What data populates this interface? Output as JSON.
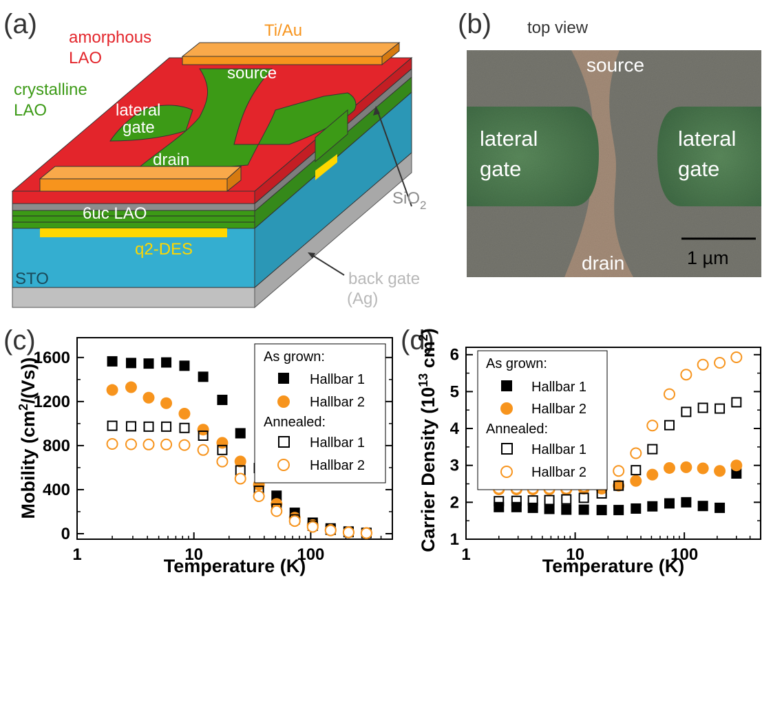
{
  "panel_labels": {
    "a": "(a)",
    "b": "(b)",
    "c": "(c)",
    "d": "(d)"
  },
  "panel_a": {
    "labels": {
      "amorphous": "amorphous",
      "lao_red": "LAO",
      "crystalline": "crystalline",
      "lao_green": "LAO",
      "tiau": "Ti/Au",
      "source": "source",
      "lateral": "lateral",
      "gate": "gate",
      "drain": "drain",
      "sixuc": "6uc LAO",
      "q2des": "q2-DES",
      "sto": "STO",
      "sio2": "SiO",
      "sio2_sub": "2",
      "back_gate": "back gate",
      "ag": "(Ag)"
    },
    "colors": {
      "amorphous": "#e3252b",
      "crystalline": "#3c9a16",
      "tiau": "#f7941d",
      "q2des": "#ffd700",
      "sto": "#34aed0",
      "sio2": "#8c8c8c",
      "ag": "#c0c0c0"
    }
  },
  "panel_b": {
    "title": "top view",
    "source": "source",
    "drain": "drain",
    "gate_left_1": "lateral",
    "gate_left_2": "gate",
    "gate_right_1": "lateral",
    "gate_right_2": "gate",
    "scale": "1 µm"
  },
  "chart_data": [
    {
      "id": "c",
      "type": "scatter",
      "x_scale": "log",
      "xlim": [
        1,
        500
      ],
      "ylim": [
        -50,
        1780
      ],
      "xlabel": "Temperature (K)",
      "ylabel_main": "Mobility (cm",
      "ylabel_sup": "2",
      "ylabel_end": "/(Vs))",
      "x_ticks": [
        1,
        10,
        100
      ],
      "x_tick_labels": [
        "1",
        "10",
        "100"
      ],
      "y_ticks": [
        0,
        400,
        800,
        1200,
        1600
      ],
      "y_tick_labels": [
        "0",
        "400",
        "800",
        "1200",
        "1600"
      ],
      "legend": {
        "header_1": "As grown:",
        "header_2": "Annealed:",
        "position": "top-right"
      },
      "series": [
        {
          "name": "Hallbar 1",
          "group": "As grown",
          "marker": "square",
          "filled": true,
          "color": "#000000",
          "x": [
            2,
            2.9,
            4.1,
            5.8,
            8.3,
            12,
            17.5,
            25,
            36,
            51,
            73,
            104,
            148,
            211,
            300
          ],
          "y": [
            1565,
            1550,
            1545,
            1555,
            1525,
            1425,
            1215,
            912,
            596,
            345,
            190,
            100,
            48,
            20,
            8
          ]
        },
        {
          "name": "Hallbar 2",
          "group": "As grown",
          "marker": "circle",
          "filled": true,
          "color": "#f7941d",
          "x": [
            2,
            2.9,
            4.1,
            5.8,
            8.3,
            12,
            17.5,
            25,
            36,
            51,
            73,
            104,
            148,
            211,
            300
          ],
          "y": [
            1305,
            1330,
            1235,
            1185,
            1090,
            945,
            825,
            656,
            445,
            270,
            145,
            78,
            35,
            14,
            6
          ]
        },
        {
          "name": "Hallbar 1",
          "group": "Annealed",
          "marker": "square",
          "filled": false,
          "color": "#000000",
          "x": [
            2,
            2.9,
            4.1,
            5.8,
            8.3,
            12,
            17.5,
            25,
            36,
            51,
            73,
            104,
            148,
            211,
            300
          ],
          "y": [
            980,
            975,
            972,
            972,
            960,
            890,
            760,
            575,
            390,
            228,
            130,
            72,
            35,
            14,
            6
          ]
        },
        {
          "name": "Hallbar 2",
          "group": "Annealed",
          "marker": "circle",
          "filled": false,
          "color": "#f7941d",
          "x": [
            2,
            2.9,
            4.1,
            5.8,
            8.3,
            12,
            17.5,
            25,
            36,
            51,
            73,
            104,
            148,
            211,
            300
          ],
          "y": [
            815,
            812,
            810,
            810,
            805,
            760,
            655,
            500,
            340,
            205,
            115,
            62,
            30,
            12,
            5
          ]
        }
      ]
    },
    {
      "id": "d",
      "type": "scatter",
      "x_scale": "log",
      "xlim": [
        1,
        500
      ],
      "ylim": [
        1,
        6.2
      ],
      "xlabel": "Temperature (K)",
      "ylabel_main": "Carrier Density (10",
      "ylabel_sup1": "13",
      "ylabel_mid": " cm",
      "ylabel_sup2": "2",
      "ylabel_end": ")",
      "x_ticks": [
        1,
        10,
        100
      ],
      "x_tick_labels": [
        "1",
        "10",
        "100"
      ],
      "y_ticks": [
        1,
        2,
        3,
        4,
        5,
        6
      ],
      "y_tick_labels": [
        "1",
        "2",
        "3",
        "4",
        "5",
        "6"
      ],
      "legend": {
        "header_1": "As grown:",
        "header_2": "Annealed:",
        "position": "top-left"
      },
      "series": [
        {
          "name": "Hallbar 1",
          "group": "As grown",
          "marker": "square",
          "filled": true,
          "color": "#000000",
          "x": [
            2,
            2.9,
            4.1,
            5.8,
            8.3,
            12,
            17.5,
            25,
            36,
            51,
            73,
            104,
            148,
            211,
            300
          ],
          "y": [
            1.87,
            1.87,
            1.85,
            1.82,
            1.8,
            1.8,
            1.79,
            1.79,
            1.83,
            1.89,
            1.97,
            2.0,
            1.9,
            1.85,
            2.78
          ]
        },
        {
          "name": "Hallbar 2",
          "group": "As grown",
          "marker": "circle",
          "filled": true,
          "color": "#f7941d",
          "x": [
            2,
            2.9,
            4.1,
            5.8,
            8.3,
            12,
            17.5,
            25,
            36,
            51,
            73,
            104,
            148,
            211,
            300
          ],
          "y": [
            2.35,
            2.35,
            2.35,
            2.35,
            2.35,
            2.37,
            2.37,
            2.45,
            2.58,
            2.75,
            2.93,
            2.95,
            2.92,
            2.85,
            3.0
          ]
        },
        {
          "name": "Hallbar 1",
          "group": "Annealed",
          "marker": "square",
          "filled": false,
          "color": "#000000",
          "x": [
            2,
            2.9,
            4.1,
            5.8,
            8.3,
            12,
            17.5,
            25,
            36,
            51,
            73,
            104,
            148,
            211,
            300
          ],
          "y": [
            2.03,
            2.04,
            2.05,
            2.06,
            2.08,
            2.12,
            2.24,
            2.45,
            2.87,
            3.44,
            4.09,
            4.45,
            4.56,
            4.54,
            4.71
          ]
        },
        {
          "name": "Hallbar 2",
          "group": "Annealed",
          "marker": "circle",
          "filled": false,
          "color": "#f7941d",
          "x": [
            2,
            2.9,
            4.1,
            5.8,
            8.3,
            12,
            17.5,
            25,
            36,
            51,
            73,
            104,
            148,
            211,
            300
          ],
          "y": [
            2.38,
            2.38,
            2.38,
            2.38,
            2.38,
            2.43,
            2.55,
            2.85,
            3.33,
            4.08,
            4.93,
            5.46,
            5.73,
            5.78,
            5.93
          ]
        }
      ]
    }
  ]
}
